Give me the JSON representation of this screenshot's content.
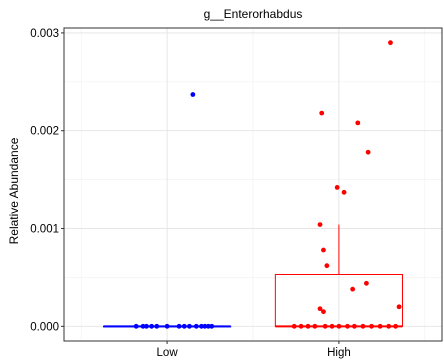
{
  "chart_data": {
    "type": "box",
    "title": "g__Enterorhabdus",
    "xlabel": "",
    "ylabel": "Relative Abundance",
    "categories": [
      "Low",
      "High"
    ],
    "ylim": [
      -0.00015,
      0.00305
    ],
    "y_ticks": [
      0,
      0.001,
      0.002,
      0.003
    ],
    "y_tick_labels": [
      "0.000",
      "0.001",
      "0.002",
      "0.003"
    ],
    "grid": true,
    "legend": "none",
    "series": [
      {
        "name": "Low",
        "color": "#0000ff",
        "box": {
          "q1": 0,
          "median": 0,
          "q3": 0,
          "whisker_low": 0,
          "whisker_high": 0
        },
        "points": [
          {
            "x": 0.82,
            "y": 0
          },
          {
            "x": 0.86,
            "y": 0
          },
          {
            "x": 0.88,
            "y": 0
          },
          {
            "x": 0.91,
            "y": 0
          },
          {
            "x": 0.94,
            "y": 0
          },
          {
            "x": 1.0,
            "y": 0
          },
          {
            "x": 1.07,
            "y": 0
          },
          {
            "x": 1.1,
            "y": 0
          },
          {
            "x": 1.13,
            "y": 0
          },
          {
            "x": 1.17,
            "y": 0
          },
          {
            "x": 1.2,
            "y": 0
          },
          {
            "x": 1.22,
            "y": 0
          },
          {
            "x": 1.24,
            "y": 0
          },
          {
            "x": 1.26,
            "y": 0
          },
          {
            "x": 1.15,
            "y": 0.00237
          }
        ]
      },
      {
        "name": "High",
        "color": "#ff0000",
        "box": {
          "q1": 0,
          "median": 0,
          "q3": 0.00053,
          "whisker_low": 0,
          "whisker_high": 0.00104
        },
        "points": [
          {
            "x": 2.3,
            "y": 0.0029
          },
          {
            "x": 1.9,
            "y": 0.00218
          },
          {
            "x": 2.11,
            "y": 0.00208
          },
          {
            "x": 2.17,
            "y": 0.00178
          },
          {
            "x": 1.99,
            "y": 0.00142
          },
          {
            "x": 2.03,
            "y": 0.00137
          },
          {
            "x": 1.89,
            "y": 0.00104
          },
          {
            "x": 1.91,
            "y": 0.00078
          },
          {
            "x": 1.93,
            "y": 0.00062
          },
          {
            "x": 2.16,
            "y": 0.00044
          },
          {
            "x": 2.08,
            "y": 0.00038
          },
          {
            "x": 2.35,
            "y": 0.0002
          },
          {
            "x": 1.89,
            "y": 0.00018
          },
          {
            "x": 1.91,
            "y": 0.00015
          },
          {
            "x": 1.74,
            "y": 0
          },
          {
            "x": 1.78,
            "y": 0
          },
          {
            "x": 1.82,
            "y": 0
          },
          {
            "x": 1.86,
            "y": 0
          },
          {
            "x": 1.92,
            "y": 0
          },
          {
            "x": 1.96,
            "y": 0
          },
          {
            "x": 2.0,
            "y": 0
          },
          {
            "x": 2.05,
            "y": 0
          },
          {
            "x": 2.09,
            "y": 0
          },
          {
            "x": 2.14,
            "y": 0
          },
          {
            "x": 2.19,
            "y": 0
          },
          {
            "x": 2.24,
            "y": 0
          },
          {
            "x": 2.29,
            "y": 0
          },
          {
            "x": 2.33,
            "y": 0
          }
        ]
      }
    ]
  }
}
